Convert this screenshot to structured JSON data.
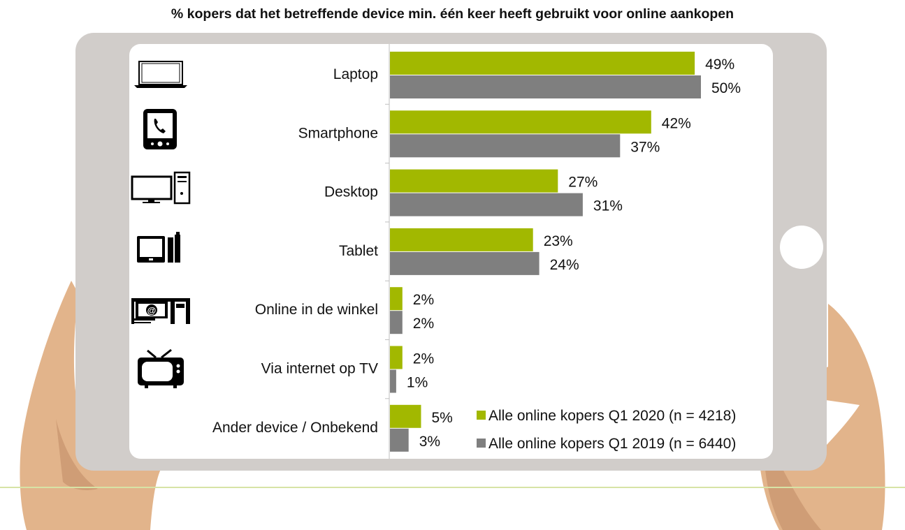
{
  "chart_data": {
    "type": "bar",
    "orientation": "horizontal",
    "title": "% kopers dat het betreffende device min. één keer heeft gebruikt voor online aankopen",
    "categories": [
      "Laptop",
      "Smartphone",
      "Desktop",
      "Tablet",
      "Online in de winkel",
      "Via internet op TV",
      "Ander device / Onbekend"
    ],
    "series": [
      {
        "name": "Alle online kopers Q1 2020 (n = 4218)",
        "color": "#a2b800",
        "values": [
          49,
          42,
          27,
          23,
          2,
          2,
          5
        ]
      },
      {
        "name": "Alle online kopers Q1 2019 (n = 6440)",
        "color": "#7f7f7f",
        "values": [
          50,
          37,
          31,
          24,
          2,
          1,
          3
        ]
      }
    ],
    "value_suffix": "%",
    "legend_position": "bottom-right",
    "grid": false,
    "icons": [
      "laptop-icon",
      "smartphone-icon",
      "desktop-icon",
      "tablet-icon",
      "shop-terminal-icon",
      "tv-icon",
      null
    ]
  }
}
